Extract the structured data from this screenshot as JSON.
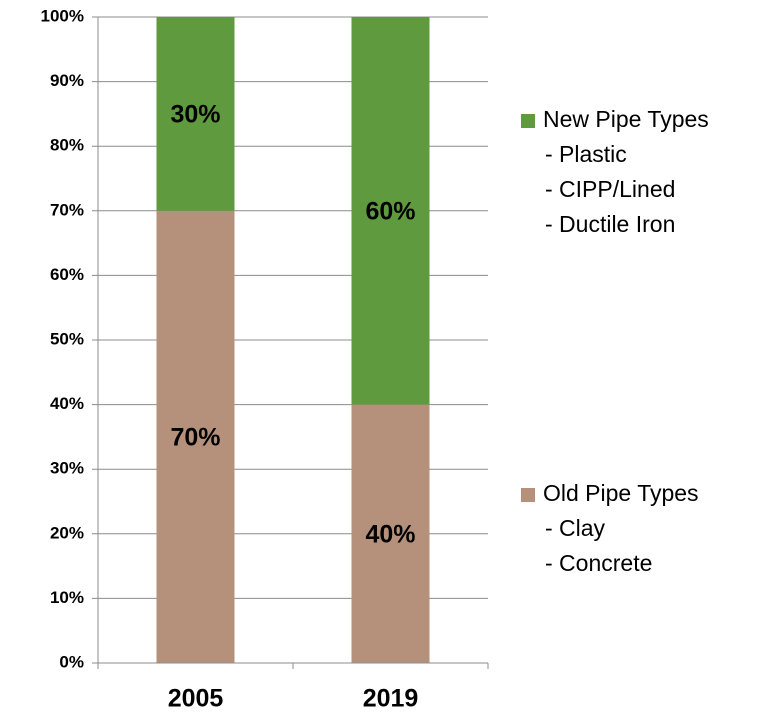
{
  "chart_data": {
    "type": "stacked_bar",
    "categories": [
      "2005",
      "2019"
    ],
    "series": [
      {
        "name": "Old Pipe Types",
        "details": [
          "- Clay",
          "- Concrete"
        ],
        "color": "#b5917c",
        "values": [
          70,
          40
        ],
        "value_labels": [
          "70%",
          "40%"
        ]
      },
      {
        "name": "New Pipe Types",
        "details": [
          "- Plastic",
          "- CIPP/Lined",
          "- Ductile Iron"
        ],
        "color": "#5f9a3f",
        "values": [
          30,
          60
        ],
        "value_labels": [
          "30%",
          "60%"
        ]
      }
    ],
    "ylim": [
      0,
      100
    ],
    "yticks": [
      {
        "value": 0,
        "label": "0%"
      },
      {
        "value": 10,
        "label": "10%"
      },
      {
        "value": 20,
        "label": "20%"
      },
      {
        "value": 30,
        "label": "30%"
      },
      {
        "value": 40,
        "label": "40%"
      },
      {
        "value": 50,
        "label": "50%"
      },
      {
        "value": 60,
        "label": "60%"
      },
      {
        "value": 70,
        "label": "70%"
      },
      {
        "value": 80,
        "label": "80%"
      },
      {
        "value": 90,
        "label": "90%"
      },
      {
        "value": 100,
        "label": "100%"
      }
    ],
    "grid": true
  }
}
